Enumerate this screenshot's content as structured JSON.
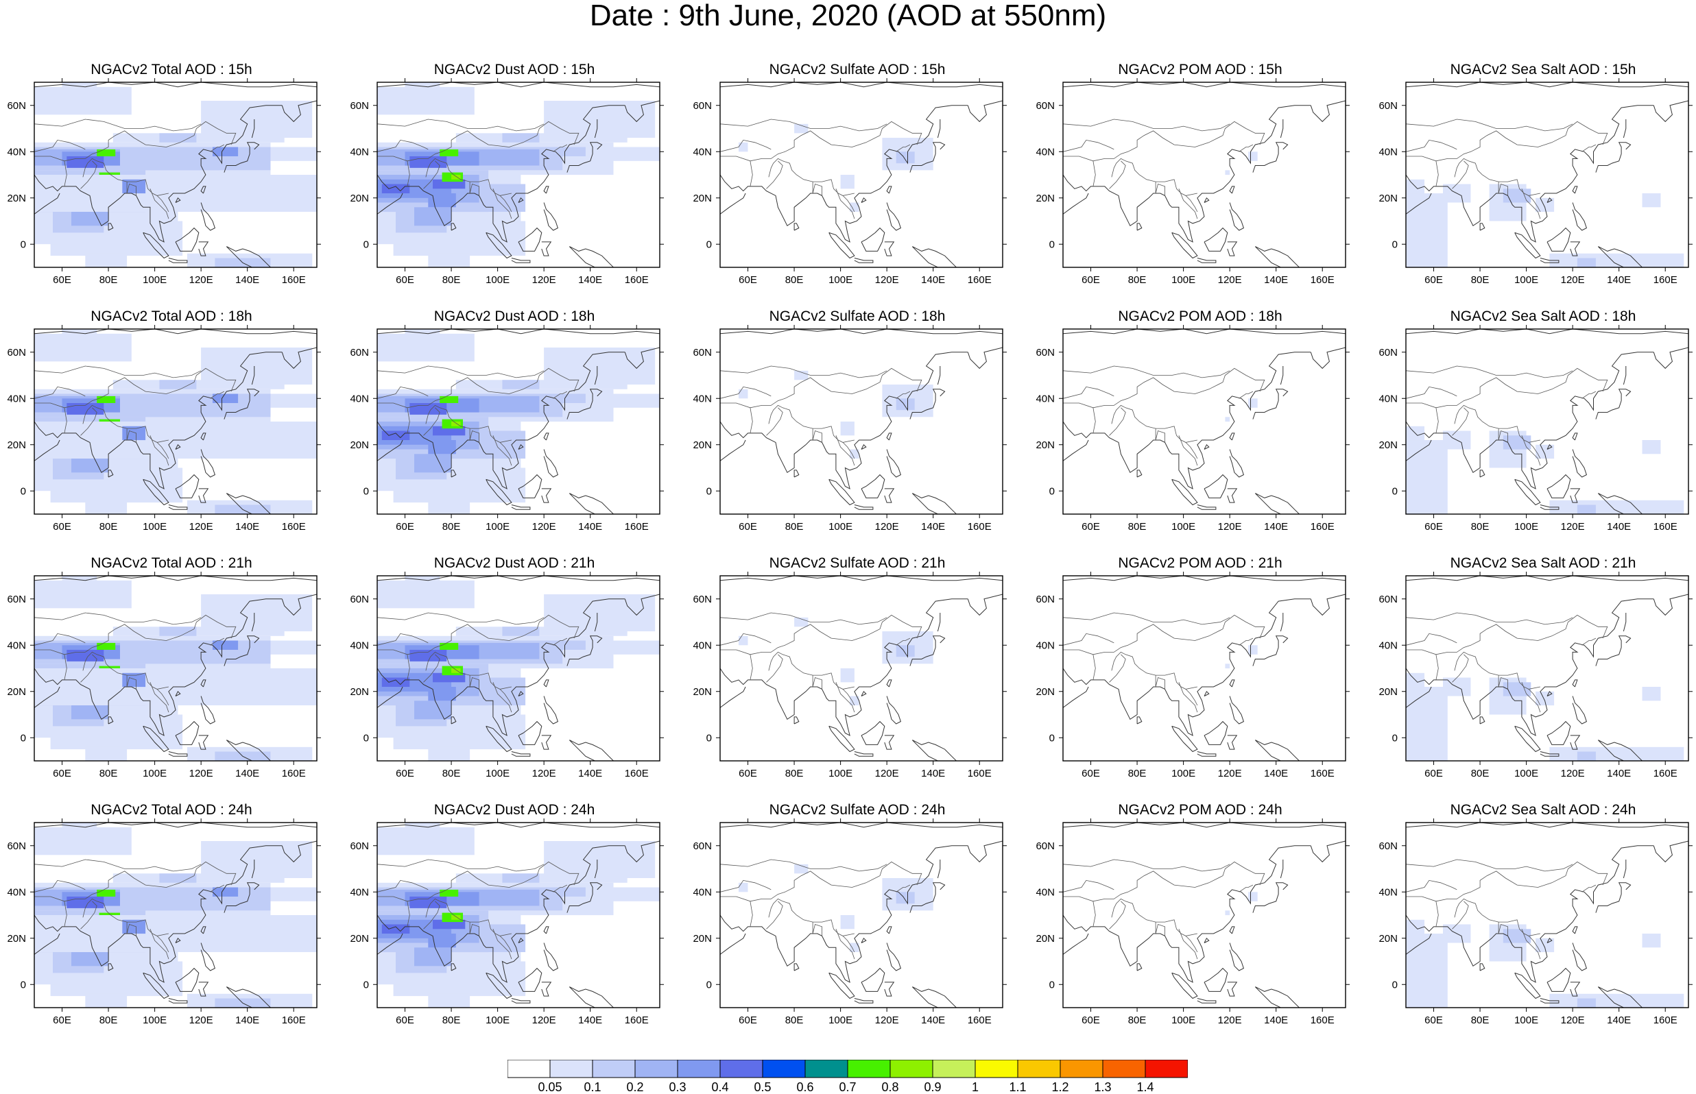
{
  "title": "Date : 9th June, 2020 (AOD at 550nm)",
  "panels": [
    {
      "title": "NGACv2 Total AOD : 15h",
      "species": "total",
      "hour": "15h"
    },
    {
      "title": "NGACv2 Dust AOD : 15h",
      "species": "dust",
      "hour": "15h"
    },
    {
      "title": "NGACv2 Sulfate AOD : 15h",
      "species": "sulfate",
      "hour": "15h"
    },
    {
      "title": "NGACv2 POM AOD : 15h",
      "species": "pom",
      "hour": "15h"
    },
    {
      "title": "NGACv2 Sea Salt AOD : 15h",
      "species": "seasalt",
      "hour": "15h"
    },
    {
      "title": "NGACv2 Total AOD : 18h",
      "species": "total",
      "hour": "18h"
    },
    {
      "title": "NGACv2 Dust AOD : 18h",
      "species": "dust",
      "hour": "18h"
    },
    {
      "title": "NGACv2 Sulfate AOD : 18h",
      "species": "sulfate",
      "hour": "18h"
    },
    {
      "title": "NGACv2 POM AOD : 18h",
      "species": "pom",
      "hour": "18h"
    },
    {
      "title": "NGACv2 Sea Salt AOD : 18h",
      "species": "seasalt",
      "hour": "18h"
    },
    {
      "title": "NGACv2 Total AOD : 21h",
      "species": "total",
      "hour": "21h"
    },
    {
      "title": "NGACv2 Dust AOD : 21h",
      "species": "dust",
      "hour": "21h"
    },
    {
      "title": "NGACv2 Sulfate AOD : 21h",
      "species": "sulfate",
      "hour": "21h"
    },
    {
      "title": "NGACv2 POM AOD : 21h",
      "species": "pom",
      "hour": "21h"
    },
    {
      "title": "NGACv2 Sea Salt AOD : 21h",
      "species": "seasalt",
      "hour": "21h"
    },
    {
      "title": "NGACv2 Total AOD : 24h",
      "species": "total",
      "hour": "24h"
    },
    {
      "title": "NGACv2 Dust AOD : 24h",
      "species": "dust",
      "hour": "24h"
    },
    {
      "title": "NGACv2 Sulfate AOD : 24h",
      "species": "sulfate",
      "hour": "24h"
    },
    {
      "title": "NGACv2 POM AOD : 24h",
      "species": "pom",
      "hour": "24h"
    },
    {
      "title": "NGACv2 Sea Salt  AOD : 24h",
      "species": "seasalt",
      "hour": "24h"
    }
  ],
  "axes": {
    "lon_ticks": [
      "60E",
      "80E",
      "100E",
      "120E",
      "140E",
      "160E"
    ],
    "lat_ticks": [
      "60N",
      "40N",
      "20N",
      "0"
    ]
  },
  "colorbar": {
    "labels": [
      "0.05",
      "0.1",
      "0.2",
      "0.3",
      "0.4",
      "0.5",
      "0.6",
      "0.7",
      "0.8",
      "0.9",
      "1",
      "1.1",
      "1.2",
      "1.3",
      "1.4"
    ],
    "colors": [
      "#ffffff",
      "#dbe3fb",
      "#c0cdf7",
      "#a0b4f4",
      "#8099f0",
      "#5f6ee9",
      "#0050f0",
      "#00908e",
      "#47f000",
      "#8ef000",
      "#c6f05a",
      "#fafa00",
      "#fac800",
      "#fa9600",
      "#f86400",
      "#f51400"
    ]
  }
}
